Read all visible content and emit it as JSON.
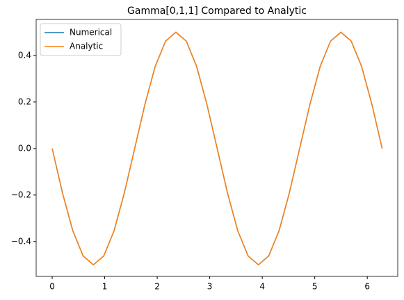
{
  "chart_data": {
    "type": "line",
    "title": "Gamma[0,1,1] Compared to Analytic",
    "x": [
      0,
      0.196,
      0.393,
      0.589,
      0.785,
      0.982,
      1.178,
      1.374,
      1.571,
      1.767,
      1.963,
      2.16,
      2.356,
      2.553,
      2.749,
      2.945,
      3.142,
      3.338,
      3.534,
      3.731,
      3.927,
      4.123,
      4.32,
      4.516,
      4.712,
      4.909,
      5.105,
      5.301,
      5.498,
      5.694,
      5.89,
      6.087,
      6.283
    ],
    "series": [
      {
        "name": "Numerical",
        "color": "#1f77b4",
        "values": [
          0,
          -0.191,
          -0.354,
          -0.462,
          -0.5,
          -0.462,
          -0.354,
          -0.191,
          0,
          0.191,
          0.354,
          0.462,
          0.5,
          0.462,
          0.354,
          0.191,
          0,
          -0.191,
          -0.354,
          -0.462,
          -0.5,
          -0.462,
          -0.354,
          -0.191,
          0,
          0.191,
          0.354,
          0.462,
          0.5,
          0.462,
          0.354,
          0.191,
          0
        ]
      },
      {
        "name": "Analytic",
        "color": "#ff7f0e",
        "values": [
          0,
          -0.191,
          -0.354,
          -0.462,
          -0.5,
          -0.462,
          -0.354,
          -0.191,
          0,
          0.191,
          0.354,
          0.462,
          0.5,
          0.462,
          0.354,
          0.191,
          0,
          -0.191,
          -0.354,
          -0.462,
          -0.5,
          -0.462,
          -0.354,
          -0.191,
          0,
          0.191,
          0.354,
          0.462,
          0.5,
          0.462,
          0.354,
          0.191,
          0
        ]
      }
    ],
    "xlim": [
      -0.305,
      6.58
    ],
    "xticks": [
      0,
      1,
      2,
      3,
      4,
      5,
      6
    ],
    "ylim": [
      -0.55,
      0.555
    ],
    "yticks": [
      {
        "value": -0.4,
        "label": "−0.4"
      },
      {
        "value": -0.2,
        "label": "−0.2"
      },
      {
        "value": 0,
        "label": "0.0"
      },
      0.2,
      0.4
    ],
    "legend": "upper left"
  }
}
